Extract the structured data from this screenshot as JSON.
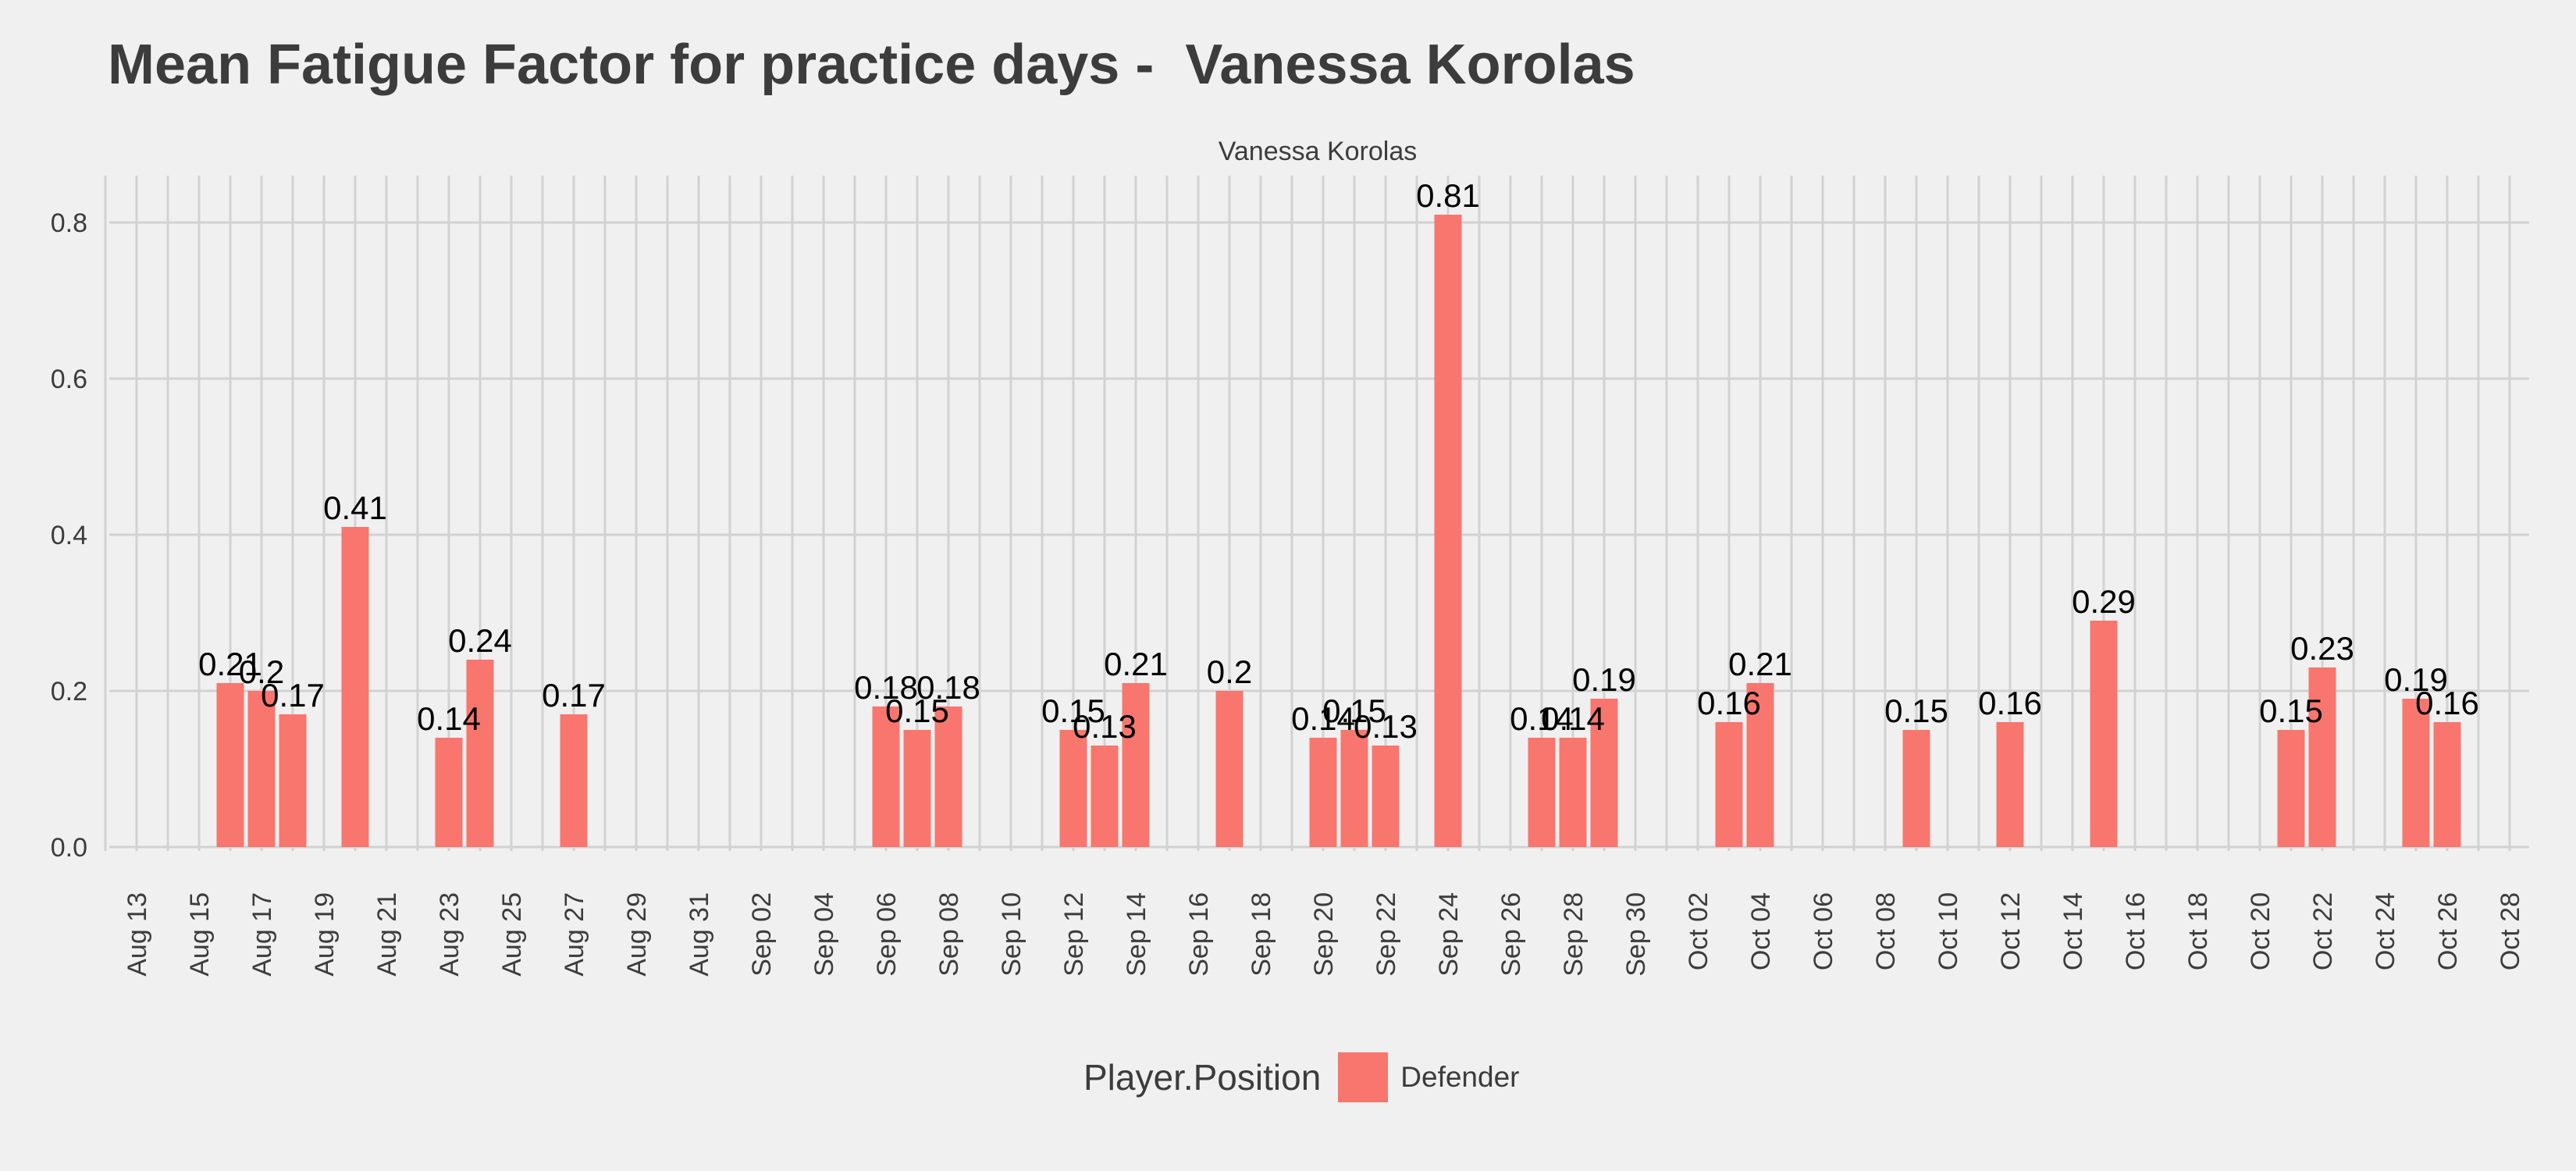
{
  "chart_data": {
    "type": "bar",
    "title": "Mean Fatigue Factor for practice days -  Vanessa Korolas",
    "facet_label": "Vanessa Korolas",
    "xlabel": "",
    "ylabel": "",
    "ylim": [
      0,
      0.85
    ],
    "y_ticks": [
      0.0,
      0.2,
      0.4,
      0.6,
      0.8
    ],
    "y_tick_labels": [
      "0.0",
      "0.2",
      "0.4",
      "0.6",
      "0.8"
    ],
    "x_range": [
      "2024-08-12",
      "2024-10-28"
    ],
    "x_tick_labels": [
      "Aug 13",
      "Aug 15",
      "Aug 17",
      "Aug 19",
      "Aug 21",
      "Aug 23",
      "Aug 25",
      "Aug 27",
      "Aug 29",
      "Aug 31",
      "Sep 02",
      "Sep 04",
      "Sep 06",
      "Sep 08",
      "Sep 10",
      "Sep 12",
      "Sep 14",
      "Sep 16",
      "Sep 18",
      "Sep 20",
      "Sep 22",
      "Sep 24",
      "Sep 26",
      "Sep 28",
      "Sep 30",
      "Oct 02",
      "Oct 04",
      "Oct 06",
      "Oct 08",
      "Oct 10",
      "Oct 12",
      "Oct 14",
      "Oct 16",
      "Oct 18",
      "Oct 20",
      "Oct 22",
      "Oct 24",
      "Oct 26",
      "Oct 28"
    ],
    "grid": true,
    "bar_color": "#F8766D",
    "legend": {
      "title": "Player.Position",
      "entries": [
        "Defender"
      ],
      "position": "bottom"
    },
    "series": [
      {
        "name": "Defender",
        "points": [
          {
            "date": "Aug 16",
            "value": 0.21,
            "label": "0.21"
          },
          {
            "date": "Aug 17",
            "value": 0.2,
            "label": "0.2"
          },
          {
            "date": "Aug 18",
            "value": 0.17,
            "label": "0.17"
          },
          {
            "date": "Aug 20",
            "value": 0.41,
            "label": "0.41"
          },
          {
            "date": "Aug 23",
            "value": 0.14,
            "label": "0.14"
          },
          {
            "date": "Aug 24",
            "value": 0.24,
            "label": "0.24"
          },
          {
            "date": "Aug 27",
            "value": 0.17,
            "label": "0.17"
          },
          {
            "date": "Sep 06",
            "value": 0.18,
            "label": "0.18"
          },
          {
            "date": "Sep 07",
            "value": 0.15,
            "label": "0.15"
          },
          {
            "date": "Sep 08",
            "value": 0.18,
            "label": "0.18"
          },
          {
            "date": "Sep 12",
            "value": 0.15,
            "label": "0.15"
          },
          {
            "date": "Sep 13",
            "value": 0.13,
            "label": "0.13"
          },
          {
            "date": "Sep 14",
            "value": 0.21,
            "label": "0.21"
          },
          {
            "date": "Sep 17",
            "value": 0.2,
            "label": "0.2"
          },
          {
            "date": "Sep 20",
            "value": 0.14,
            "label": "0.14"
          },
          {
            "date": "Sep 21",
            "value": 0.15,
            "label": "0.15"
          },
          {
            "date": "Sep 22",
            "value": 0.13,
            "label": "0.13"
          },
          {
            "date": "Sep 24",
            "value": 0.81,
            "label": "0.81"
          },
          {
            "date": "Sep 27",
            "value": 0.14,
            "label": "0.14"
          },
          {
            "date": "Sep 28",
            "value": 0.14,
            "label": "0.14"
          },
          {
            "date": "Sep 29",
            "value": 0.19,
            "label": "0.19"
          },
          {
            "date": "Oct 03",
            "value": 0.16,
            "label": "0.16"
          },
          {
            "date": "Oct 04",
            "value": 0.21,
            "label": "0.21"
          },
          {
            "date": "Oct 09",
            "value": 0.15,
            "label": "0.15"
          },
          {
            "date": "Oct 12",
            "value": 0.16,
            "label": "0.16"
          },
          {
            "date": "Oct 15",
            "value": 0.29,
            "label": "0.29"
          },
          {
            "date": "Oct 21",
            "value": 0.15,
            "label": "0.15"
          },
          {
            "date": "Oct 22",
            "value": 0.23,
            "label": "0.23"
          },
          {
            "date": "Oct 25",
            "value": 0.19,
            "label": "0.19"
          },
          {
            "date": "Oct 26",
            "value": 0.16,
            "label": "0.16"
          }
        ]
      }
    ]
  }
}
